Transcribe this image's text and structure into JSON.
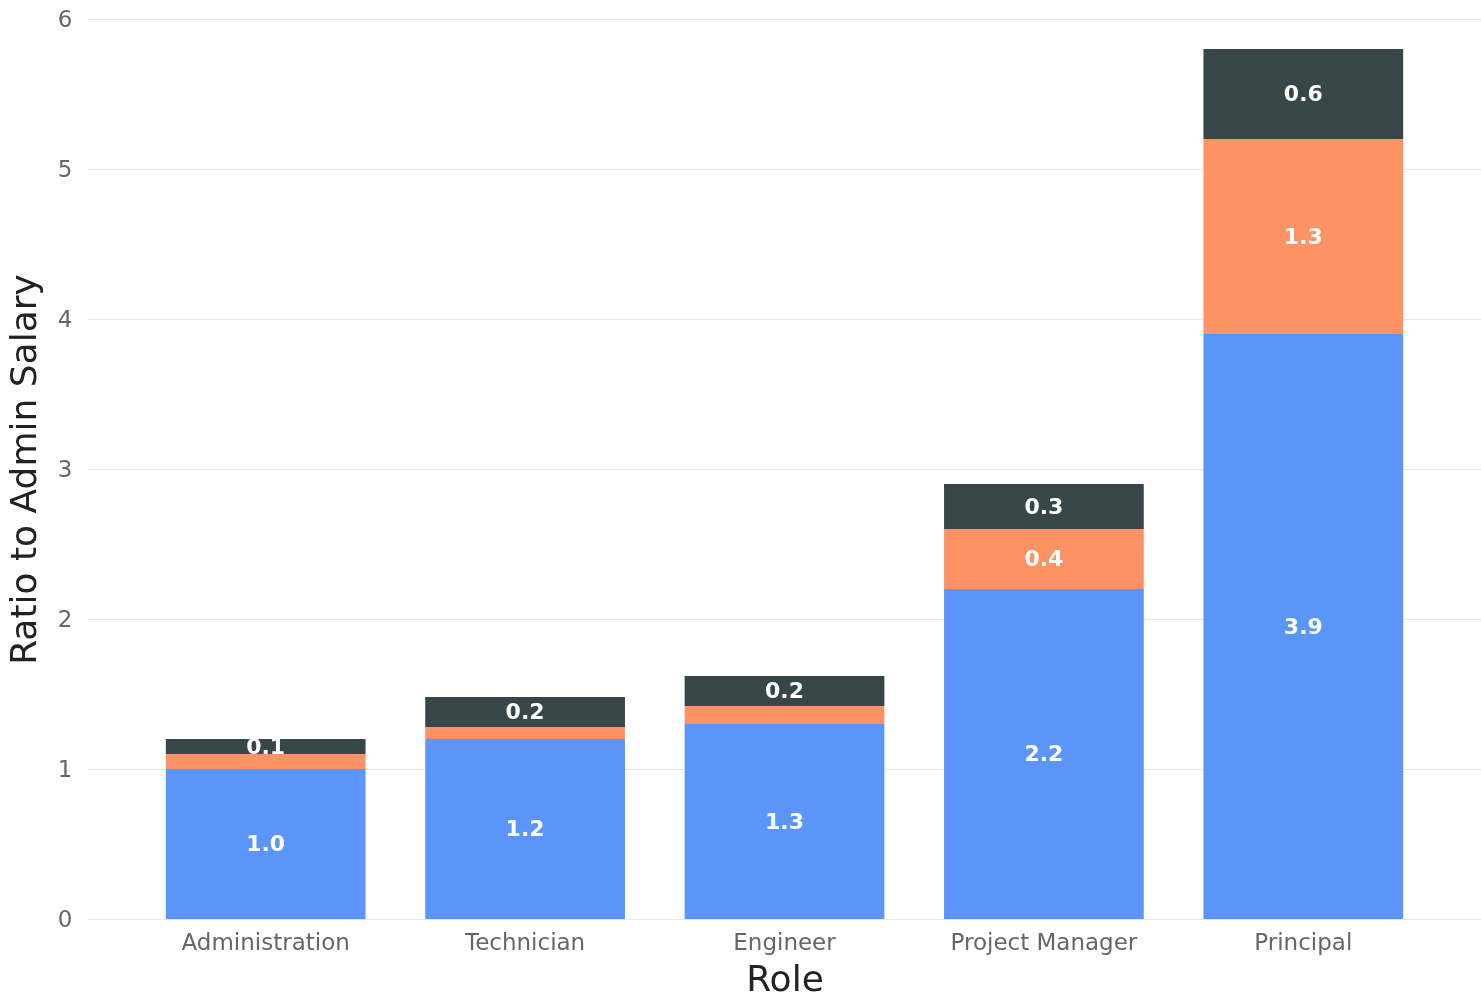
{
  "chart_data": {
    "type": "bar",
    "stacked": true,
    "xlabel": "Role",
    "ylabel": "Ratio to Admin Salary",
    "categories": [
      "Administration",
      "Technician",
      "Engineer",
      "Project Manager",
      "Principal"
    ],
    "series": [
      {
        "color": "#5b95f9",
        "values": [
          1.0,
          1.2,
          1.3,
          2.2,
          3.9
        ],
        "value_labels": [
          "1.0",
          "1.2",
          "1.3",
          "2.2",
          "3.9"
        ]
      },
      {
        "color": "#fd9365",
        "values": [
          0.1,
          0.08,
          0.12,
          0.4,
          1.3
        ],
        "value_labels": [
          null,
          null,
          null,
          "0.4",
          "1.3"
        ]
      },
      {
        "color": "#374649",
        "values": [
          0.1,
          0.2,
          0.2,
          0.3,
          0.6
        ],
        "value_labels": [
          "0.1",
          "0.2",
          "0.2",
          "0.3",
          "0.6"
        ]
      }
    ],
    "ylim": [
      0,
      6
    ],
    "yticks": [
      0,
      1,
      2,
      3,
      4,
      5,
      6
    ],
    "grid": "y"
  }
}
